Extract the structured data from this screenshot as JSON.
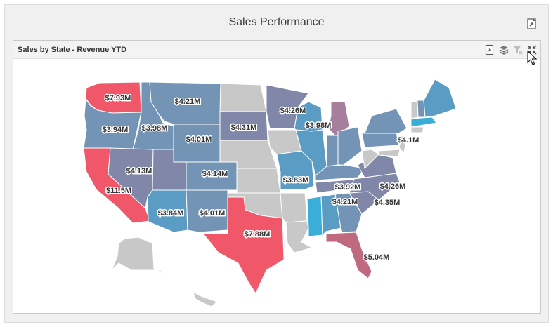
{
  "dashboard": {
    "title": "Sales Performance",
    "export_icon": "export-icon"
  },
  "item": {
    "caption": "Sales by State - Revenue YTD",
    "buttons": {
      "export": "export-icon",
      "layers": "layers-icon",
      "clear_filter": "clear-filter-icon",
      "restore": "restore-icon"
    }
  },
  "map": {
    "labels": [
      {
        "state": "WA",
        "value": "$7.93M"
      },
      {
        "state": "MT",
        "value": "$4.21M"
      },
      {
        "state": "OR",
        "value": "$3.94M"
      },
      {
        "state": "ID",
        "value": "$3.98M"
      },
      {
        "state": "WY",
        "value": "$4.01M"
      },
      {
        "state": "SD",
        "value": "$4.31M"
      },
      {
        "state": "MN",
        "value": "$4.26M"
      },
      {
        "state": "WI",
        "value": "$3.98M"
      },
      {
        "state": "NV",
        "value": "$4.13M"
      },
      {
        "state": "CO",
        "value": "$4.14M"
      },
      {
        "state": "CA",
        "value": "$11.5M"
      },
      {
        "state": "MO",
        "value": "$3.83M"
      },
      {
        "state": "AZ",
        "value": "$3.84M"
      },
      {
        "state": "NM",
        "value": "$4.01M"
      },
      {
        "state": "KY",
        "value": "$3.92M"
      },
      {
        "state": "TN",
        "value": "$4.21M"
      },
      {
        "state": "VA",
        "value": "$4.26M"
      },
      {
        "state": "NC",
        "value": "$4.35M"
      },
      {
        "state": "NY",
        "value": "$4.1M"
      },
      {
        "state": "TX",
        "value": "$7.88M"
      },
      {
        "state": "FL",
        "value": "$5.04M"
      }
    ],
    "colors": {
      "high": "#f0586a",
      "rose": "#c06a80",
      "mauve": "#a57f9c",
      "slate": "#8187a8",
      "steel": "#7394b4",
      "blue": "#5a9cc3",
      "bright": "#3aaed6",
      "na": "#c8c8c8"
    }
  }
}
